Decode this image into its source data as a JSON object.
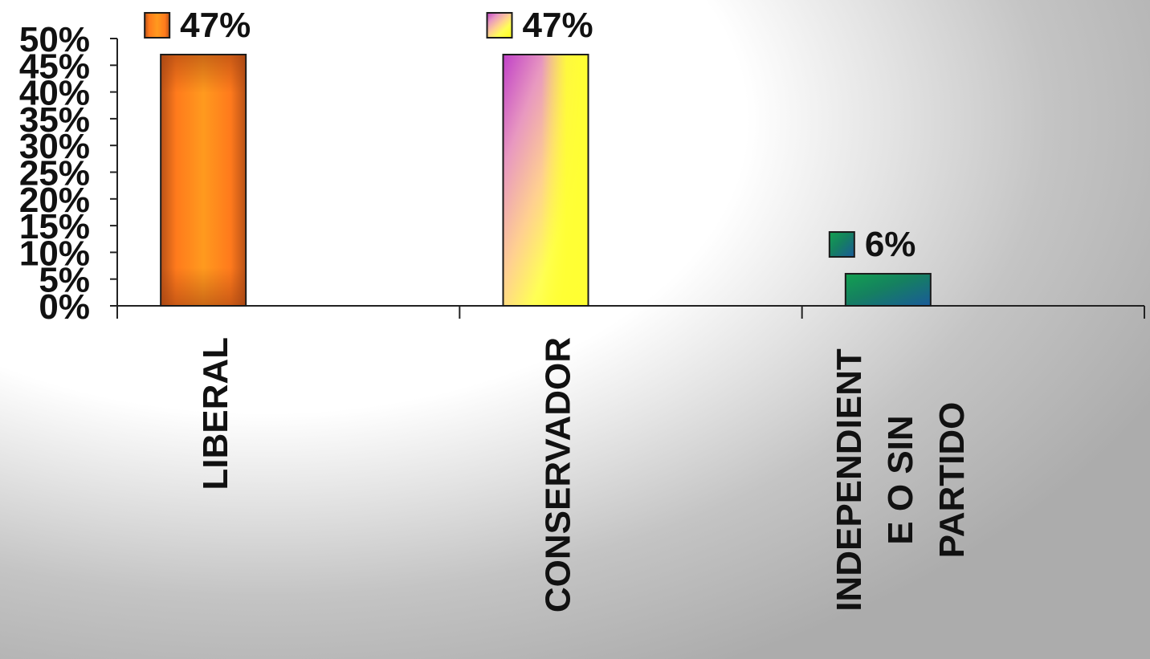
{
  "chart_data": {
    "type": "bar",
    "title": "",
    "xlabel": "",
    "ylabel": "",
    "ylim": [
      0,
      50
    ],
    "y_ticks": [
      "0%",
      "5%",
      "10%",
      "15%",
      "20%",
      "25%",
      "30%",
      "35%",
      "40%",
      "45%",
      "50%"
    ],
    "y_tick_values": [
      0,
      5,
      10,
      15,
      20,
      25,
      30,
      35,
      40,
      45,
      50
    ],
    "categories": [
      {
        "id": "liberal",
        "lines": [
          "LIBERAL"
        ]
      },
      {
        "id": "conservador",
        "lines": [
          "CONSERVADOR"
        ]
      },
      {
        "id": "independiente",
        "lines": [
          "INDEPENDIENT",
          "E O SIN",
          "PARTIDO"
        ]
      }
    ],
    "values": [
      47,
      47,
      6
    ],
    "data_labels": [
      "47%",
      "47%",
      "6%"
    ],
    "legend_markers": true,
    "grid": false
  },
  "colors": {
    "liberal_dark": "#b95218",
    "liberal_light": "#ff9a1e",
    "conservador_magenta": "#c040c8",
    "conservador_peach": "#ffc0a0",
    "conservador_yellow": "#ffff33",
    "independiente_green": "#12a050",
    "independiente_blue": "#1a5a9a",
    "axis": "#222222"
  }
}
